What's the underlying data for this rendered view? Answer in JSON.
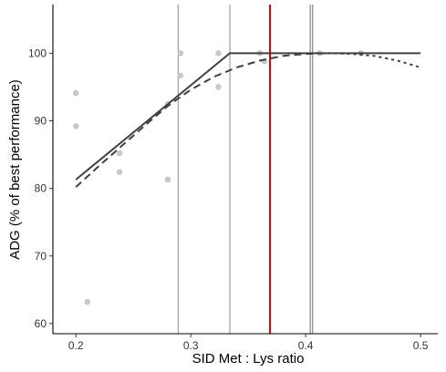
{
  "chart_data": {
    "type": "scatter",
    "title": "",
    "xlabel": "SID Met : Lys ratio",
    "ylabel": "ADG (% of best performance)",
    "xlim": [
      0.18,
      0.515
    ],
    "ylim": [
      58.5,
      107.2
    ],
    "x_ticks": [
      0.2,
      0.3,
      0.4,
      0.5
    ],
    "x_tick_labels": [
      "0.2",
      "0.3",
      "0.4",
      "0.5"
    ],
    "y_ticks": [
      60,
      70,
      80,
      90,
      100
    ],
    "y_tick_labels": [
      "60",
      "70",
      "80",
      "90",
      "100"
    ],
    "grid": false,
    "points": [
      {
        "x": 0.2,
        "y": 94.1
      },
      {
        "x": 0.2,
        "y": 89.2
      },
      {
        "x": 0.21,
        "y": 63.2
      },
      {
        "x": 0.238,
        "y": 85.2
      },
      {
        "x": 0.238,
        "y": 82.4
      },
      {
        "x": 0.28,
        "y": 92.5
      },
      {
        "x": 0.28,
        "y": 81.3
      },
      {
        "x": 0.291,
        "y": 100.0
      },
      {
        "x": 0.291,
        "y": 96.7
      },
      {
        "x": 0.324,
        "y": 100.0
      },
      {
        "x": 0.324,
        "y": 95.0
      },
      {
        "x": 0.36,
        "y": 100.0
      },
      {
        "x": 0.364,
        "y": 98.8
      },
      {
        "x": 0.412,
        "y": 100.0
      },
      {
        "x": 0.448,
        "y": 100.0
      }
    ],
    "reference_lines": [
      {
        "x": 0.289,
        "color": "#8c8c8c",
        "width": 1
      },
      {
        "x": 0.334,
        "color": "#8c8c8c",
        "width": 1
      },
      {
        "x": 0.369,
        "color": "#cc0000",
        "width": 2
      },
      {
        "x": 0.404,
        "color": "#8c8c8c",
        "width": 1.3
      },
      {
        "x": 0.406,
        "color": "#8c8c8c",
        "width": 1.3
      }
    ],
    "broken_line": {
      "x": [
        0.2,
        0.334,
        0.5
      ],
      "y": [
        81.3,
        100.0,
        100.0
      ]
    },
    "curve_dashed": {
      "x": [
        0.2,
        0.22,
        0.24,
        0.26,
        0.28,
        0.3,
        0.32,
        0.34,
        0.36,
        0.38,
        0.4,
        0.42
      ],
      "y": [
        80.2,
        83.3,
        86.3,
        89.3,
        92.2,
        94.6,
        96.5,
        97.9,
        98.9,
        99.6,
        99.9,
        100.0
      ]
    },
    "curve_dotted": {
      "x": [
        0.42,
        0.44,
        0.46,
        0.48,
        0.5
      ],
      "y": [
        100.0,
        99.9,
        99.6,
        98.9,
        97.9
      ]
    },
    "colors": {
      "points": "#c8c8c8",
      "fit_line": "#404040",
      "axis": "#000000",
      "optimum": "#cc0000"
    }
  }
}
